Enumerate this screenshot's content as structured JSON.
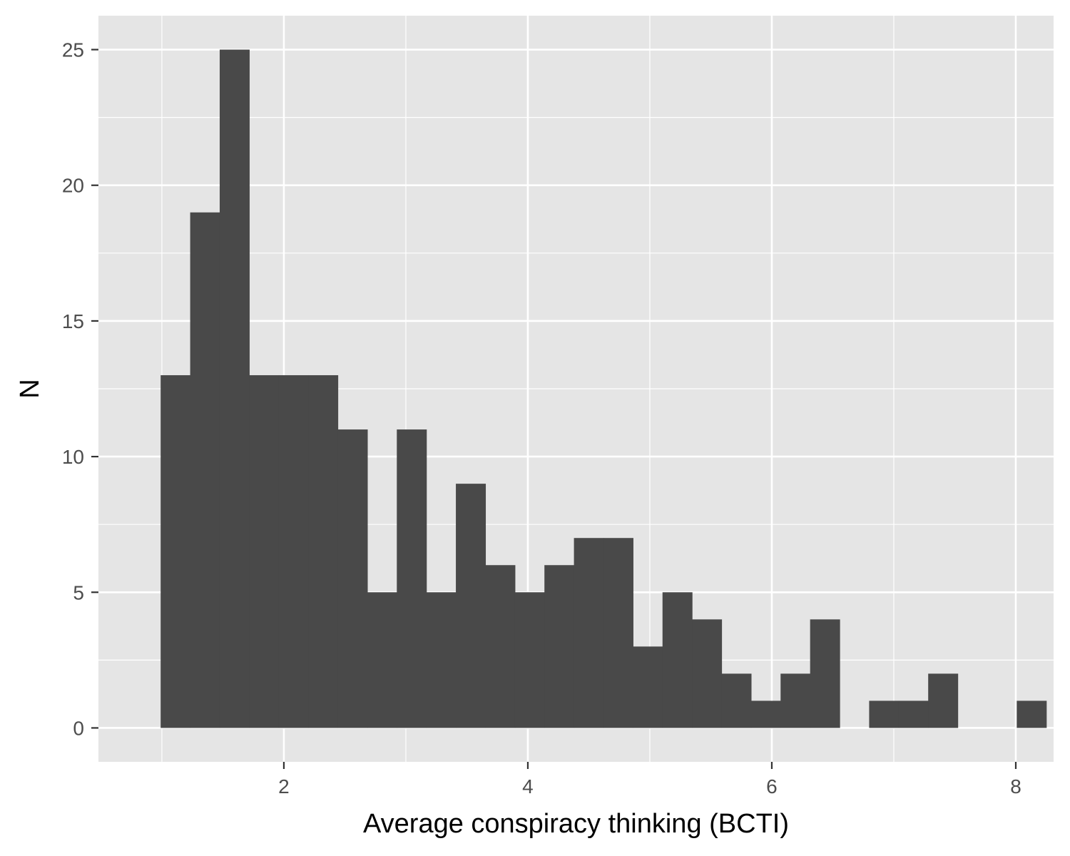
{
  "chart_data": {
    "type": "bar",
    "title": "",
    "xlabel": "Average conspiracy thinking (BCTI)",
    "ylabel": "N",
    "xlim": [
      0.48,
      8.31
    ],
    "ylim": [
      -1.25,
      26.25
    ],
    "x_ticks": [
      2,
      4,
      6,
      8
    ],
    "y_ticks": [
      0,
      5,
      10,
      15,
      20,
      25
    ],
    "x_tick_labels": [
      "2",
      "4",
      "6",
      "8"
    ],
    "y_tick_labels": [
      "0",
      "5",
      "10",
      "15",
      "20",
      "25"
    ],
    "bins": {
      "start": 0.99,
      "width": 0.242,
      "counts": [
        13,
        19,
        25,
        13,
        13,
        13,
        11,
        5,
        11,
        5,
        9,
        6,
        5,
        6,
        7,
        7,
        3,
        5,
        4,
        2,
        1,
        2,
        4,
        0,
        1,
        1,
        2,
        0,
        0,
        1
      ]
    },
    "grid": true,
    "colors": {
      "panel_background": "#e5e5e5",
      "grid": "#ffffff",
      "bar_fill": "#494949",
      "tick_label": "#4d4d4d",
      "axis_title": "#000000"
    }
  }
}
